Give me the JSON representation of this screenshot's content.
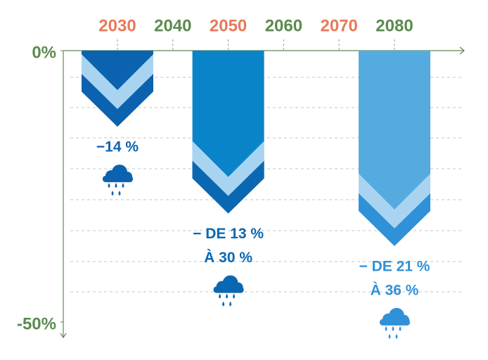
{
  "chart_data": {
    "type": "chevron",
    "categories": [
      "2030",
      "2040",
      "2050",
      "2060",
      "2070",
      "2080"
    ],
    "category_colors": [
      "#e8795a",
      "#5c8a4f",
      "#e8795a",
      "#5c8a4f",
      "#e8795a",
      "#5c8a4f"
    ],
    "values": [
      -14,
      null,
      -30,
      null,
      null,
      -36
    ],
    "value_labels": [
      [
        "−14 %"
      ],
      null,
      [
        "− DE 13 %",
        "À 30 %"
      ],
      null,
      null,
      [
        "− DE 21 %",
        "À 36 %"
      ]
    ],
    "colors": [
      "#0b62ae",
      null,
      "#0a84c9",
      null,
      null,
      "#55abe0"
    ],
    "tip_colors": [
      "#0b62ae",
      null,
      "#0a68b2",
      null,
      null,
      "#2f91d8"
    ],
    "band_color": "#a9d4f1",
    "ylim": [
      -50,
      0
    ],
    "yticks": [
      {
        "value": 0,
        "label": "0%"
      },
      {
        "value": -50,
        "label": "-50%"
      }
    ],
    "axis_color": "#5c8a4f"
  }
}
